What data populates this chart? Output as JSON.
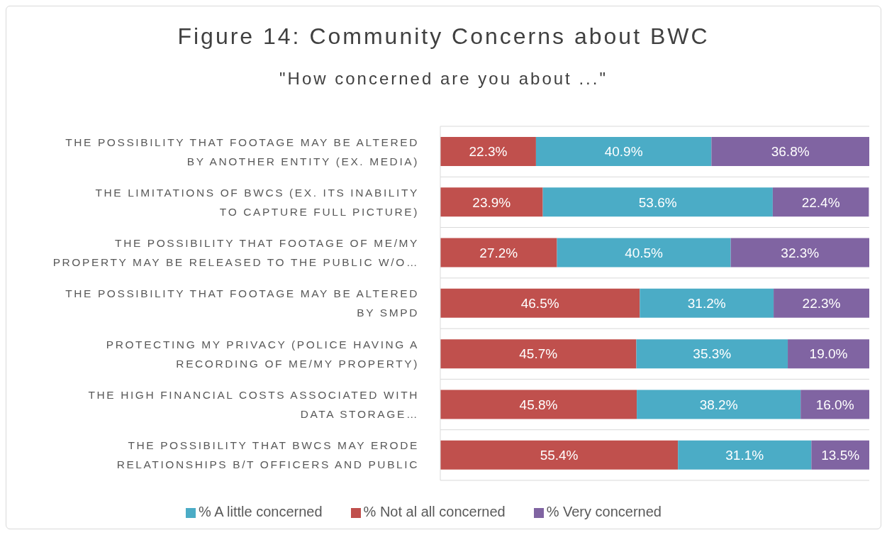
{
  "chart_data": {
    "type": "bar",
    "orientation": "horizontal",
    "stacked": true,
    "title": "Figure 14: Community Concerns about BWC",
    "subtitle": "\"How concerned are you about ...\"",
    "categories": [
      "THE POSSIBILITY THAT FOOTAGE MAY BE ALTERED BY ANOTHER ENTITY (EX. MEDIA)",
      "THE LIMITATIONS OF BWCS (EX. ITS INABILITY TO CAPTURE FULL PICTURE)",
      "THE POSSIBILITY THAT FOOTAGE OF ME/MY PROPERTY MAY BE RELEASED TO THE PUBLIC W/O…",
      "THE POSSIBILITY THAT FOOTAGE MAY BE ALTERED BY SMPD",
      "PROTECTING MY PRIVACY (POLICE HAVING A RECORDING OF ME/MY PROPERTY)",
      "THE HIGH FINANCIAL COSTS ASSOCIATED WITH DATA STORAGE…",
      "THE POSSIBILITY THAT BWCS MAY ERODE RELATIONSHIPS B/T OFFICERS AND PUBLIC"
    ],
    "series": [
      {
        "name": "% Not al all concerned",
        "color": "#c0504d",
        "values": [
          22.3,
          23.9,
          27.2,
          46.5,
          45.7,
          45.8,
          55.4
        ],
        "value_labels": [
          "22.3%",
          "23.9%",
          "27.2%",
          "46.5%",
          "45.7%",
          "45.8%",
          "55.4%"
        ]
      },
      {
        "name": "% A little concerned",
        "color": "#4bacc6",
        "values": [
          40.9,
          53.6,
          40.5,
          31.2,
          35.3,
          38.2,
          31.1
        ],
        "value_labels": [
          "40.9%",
          "53.6%",
          "40.5%",
          "31.2%",
          "35.3%",
          "38.2%",
          "31.1%"
        ]
      },
      {
        "name": "% Very concerned",
        "color": "#8064a2",
        "values": [
          36.8,
          22.4,
          32.3,
          22.3,
          19.0,
          16.0,
          13.5
        ],
        "value_labels": [
          "36.8%",
          "22.4%",
          "32.3%",
          "22.3%",
          "19.0%",
          "16.0%",
          "13.5%"
        ]
      }
    ],
    "legend": "bottom",
    "grid": "y",
    "tick_labels": "y"
  }
}
